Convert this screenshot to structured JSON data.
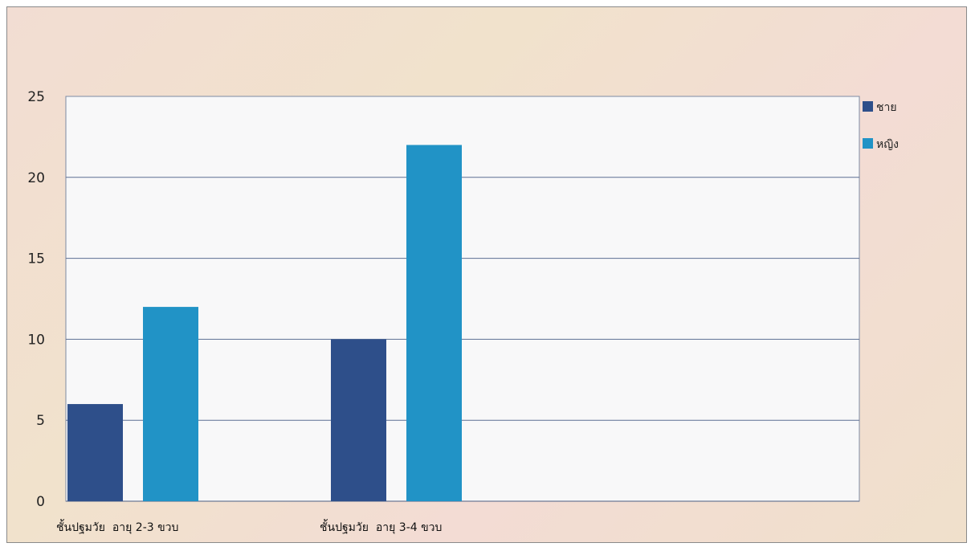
{
  "chart_data": {
    "type": "bar",
    "categories": [
      "ชั้นปฐมวัย  อายุ 2-3 ขวบ",
      "ชั้นปฐมวัย  อายุ 3-4 ขวบ"
    ],
    "series": [
      {
        "name": "ชาย",
        "values": [
          6,
          10
        ],
        "color": "#2e4f8a"
      },
      {
        "name": "หญิง",
        "values": [
          12,
          22
        ],
        "color": "#2193c6"
      }
    ],
    "ylim": [
      0,
      25
    ],
    "yticks": [
      0,
      5,
      10,
      15,
      20,
      25
    ],
    "title": "",
    "xlabel": "",
    "ylabel": "",
    "grid": true,
    "legend_position": "top-right",
    "colors": {
      "plot_background": "#f8f8f9",
      "grid": "#5c6f93",
      "background": "#f1dfd0"
    }
  }
}
